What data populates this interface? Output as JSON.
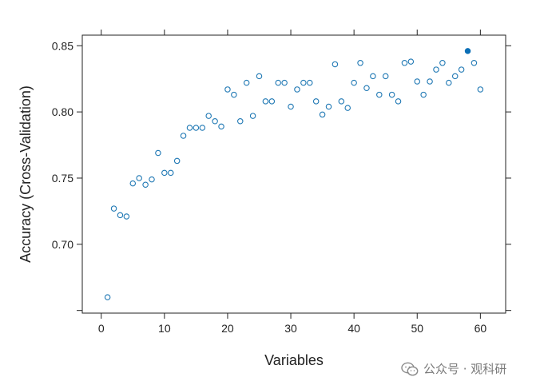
{
  "chart_data": {
    "type": "scatter",
    "xlabel": "Variables",
    "ylabel": "Accuracy (Cross-Validation)",
    "xlim": [
      -3,
      64
    ],
    "ylim": [
      0.648,
      0.858
    ],
    "x_ticks": [
      0,
      10,
      20,
      30,
      40,
      50,
      60
    ],
    "y_ticks": [
      0.7,
      0.75,
      0.8,
      0.85
    ],
    "x_tick_labels": [
      "0",
      "10",
      "20",
      "30",
      "40",
      "50",
      "60"
    ],
    "y_tick_labels": [
      "0.70",
      "0.75",
      "0.80",
      "0.85"
    ],
    "y_extra_tick": 0.65,
    "grid": false,
    "point_color": "#1F78B4",
    "highlight_color": "#0B6FB6",
    "highlight_x": 58,
    "x": [
      1,
      2,
      3,
      4,
      5,
      6,
      7,
      8,
      9,
      10,
      11,
      12,
      13,
      14,
      15,
      16,
      17,
      18,
      19,
      20,
      21,
      22,
      23,
      24,
      25,
      26,
      27,
      28,
      29,
      30,
      31,
      32,
      33,
      34,
      35,
      36,
      37,
      38,
      39,
      40,
      41,
      42,
      43,
      44,
      45,
      46,
      47,
      48,
      49,
      50,
      51,
      52,
      53,
      54,
      55,
      56,
      57,
      58,
      59,
      60
    ],
    "y": [
      0.66,
      0.727,
      0.722,
      0.721,
      0.746,
      0.75,
      0.745,
      0.749,
      0.769,
      0.754,
      0.754,
      0.763,
      0.782,
      0.788,
      0.788,
      0.788,
      0.797,
      0.793,
      0.789,
      0.817,
      0.813,
      0.793,
      0.822,
      0.797,
      0.827,
      0.808,
      0.808,
      0.822,
      0.822,
      0.804,
      0.817,
      0.822,
      0.822,
      0.808,
      0.798,
      0.804,
      0.836,
      0.808,
      0.803,
      0.822,
      0.837,
      0.818,
      0.827,
      0.813,
      0.827,
      0.813,
      0.808,
      0.837,
      0.838,
      0.823,
      0.813,
      0.823,
      0.832,
      0.837,
      0.822,
      0.827,
      0.832,
      0.846,
      0.837,
      0.817
    ]
  },
  "watermark": {
    "text": "公众号 · 观科研",
    "icon": "wechat-icon"
  }
}
